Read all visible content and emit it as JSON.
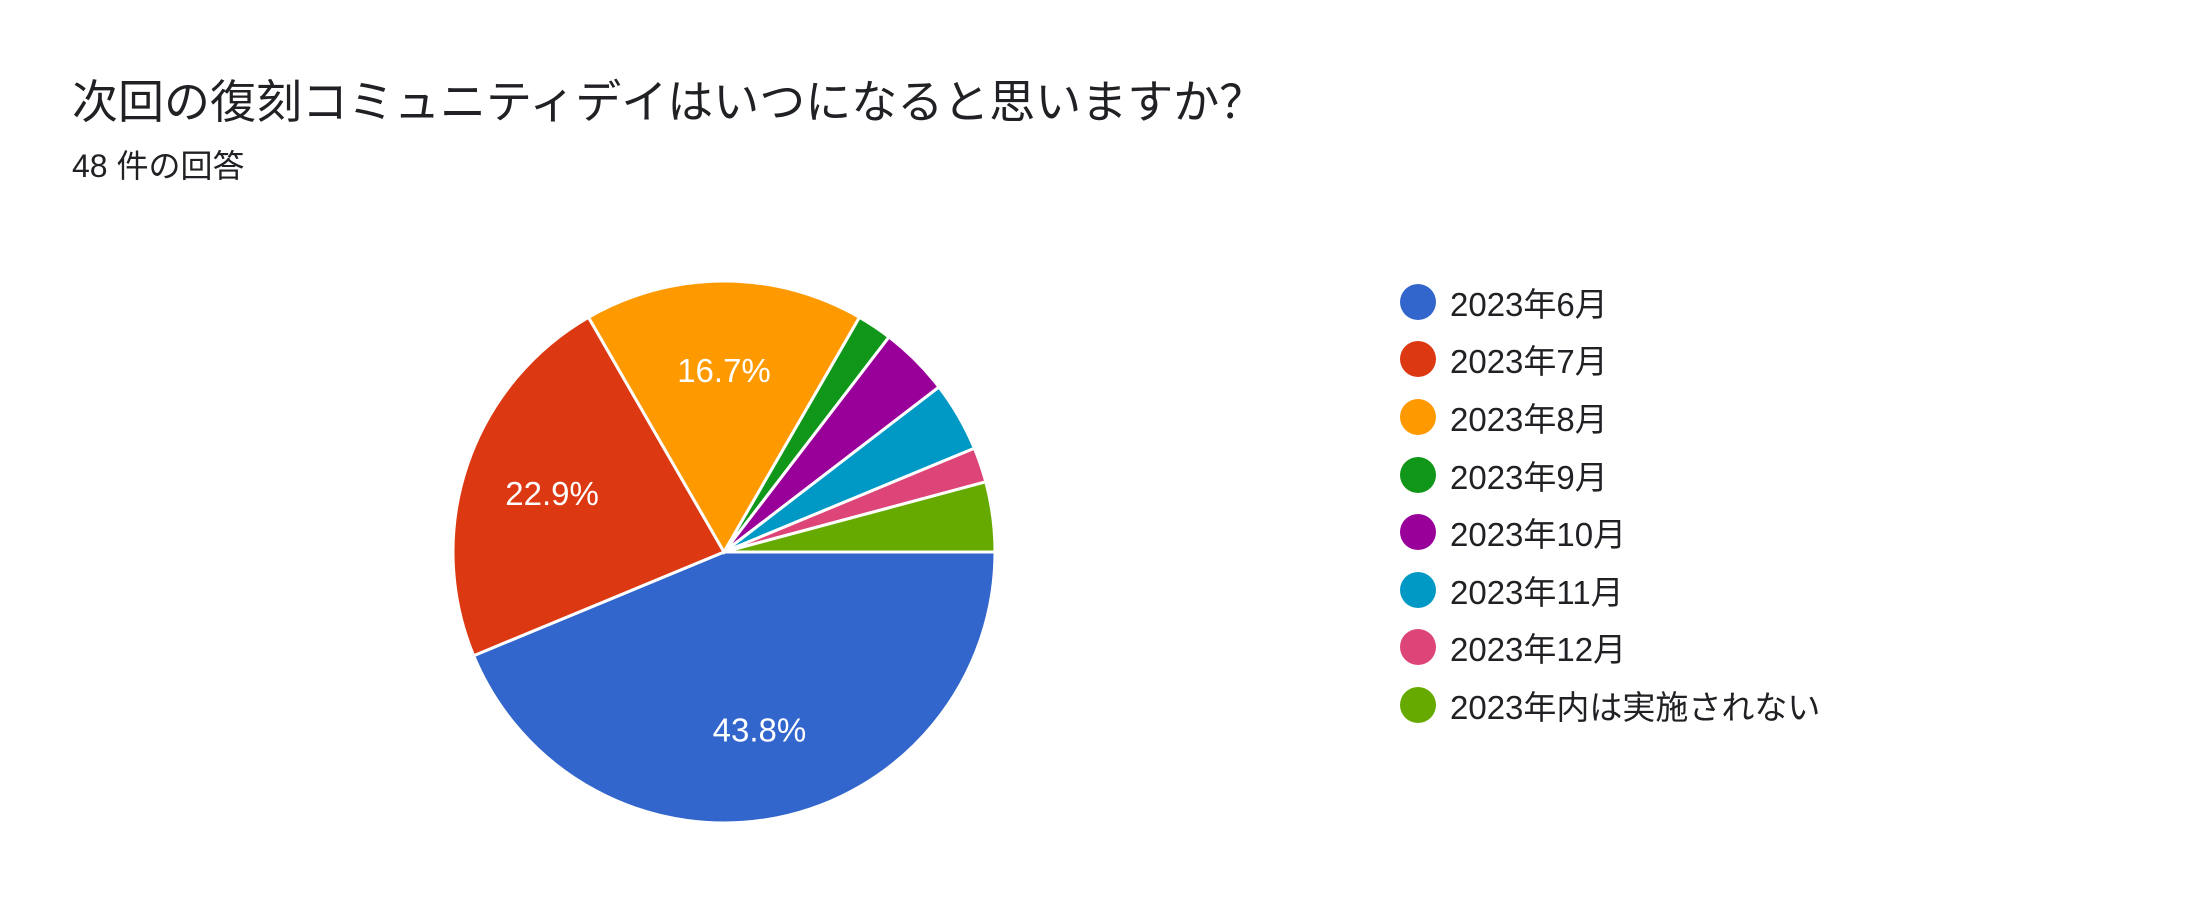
{
  "question": {
    "title": "次回の復刻コミュニティデイはいつになると思いますか？",
    "response_count": "48 件の回答"
  },
  "chart_data": {
    "type": "pie",
    "title": "次回の復刻コミュニティデイはいつになると思いますか？",
    "subtitle": "48 件の回答",
    "total": 48,
    "legend_position": "right",
    "slices": [
      {
        "label": "2023年6月",
        "count": 21,
        "percent": 43.8,
        "display_percent": "43.8%",
        "color": "#3366cc"
      },
      {
        "label": "2023年7月",
        "count": 11,
        "percent": 22.9,
        "display_percent": "22.9%",
        "color": "#dc3912"
      },
      {
        "label": "2023年8月",
        "count": 8,
        "percent": 16.7,
        "display_percent": "16.7%",
        "color": "#ff9900"
      },
      {
        "label": "2023年9月",
        "count": 1,
        "percent": 2.1,
        "display_percent": "",
        "color": "#109618"
      },
      {
        "label": "2023年10月",
        "count": 2,
        "percent": 4.2,
        "display_percent": "",
        "color": "#990099"
      },
      {
        "label": "2023年11月",
        "count": 2,
        "percent": 4.2,
        "display_percent": "",
        "color": "#0099c6"
      },
      {
        "label": "2023年12月",
        "count": 1,
        "percent": 2.1,
        "display_percent": "",
        "color": "#dd4477"
      },
      {
        "label": "2023年内は実施されない",
        "count": 2,
        "percent": 4.2,
        "display_percent": "",
        "color": "#66aa00"
      }
    ]
  }
}
